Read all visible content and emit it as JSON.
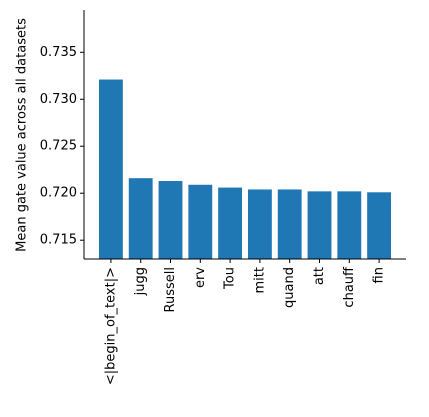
{
  "chart_data": {
    "type": "bar",
    "y_label": "Mean gate value across all datasets",
    "categories": [
      "<|begin_of_text|>",
      "jugg",
      "Russell",
      "erv",
      "Tou",
      "mitt",
      "quand",
      "att",
      "chauff",
      "fin"
    ],
    "values": [
      0.7321,
      0.7216,
      0.7213,
      0.7209,
      0.7206,
      0.7204,
      0.7204,
      0.7202,
      0.7202,
      0.7201
    ],
    "color": "#1f77b4",
    "ylim": [
      0.713,
      0.7395
    ],
    "yticks": [
      0.715,
      {
        "value": 0.72,
        "label": "0.720"
      },
      0.725,
      {
        "value": 0.73,
        "label": "0.730"
      },
      0.735
    ]
  }
}
